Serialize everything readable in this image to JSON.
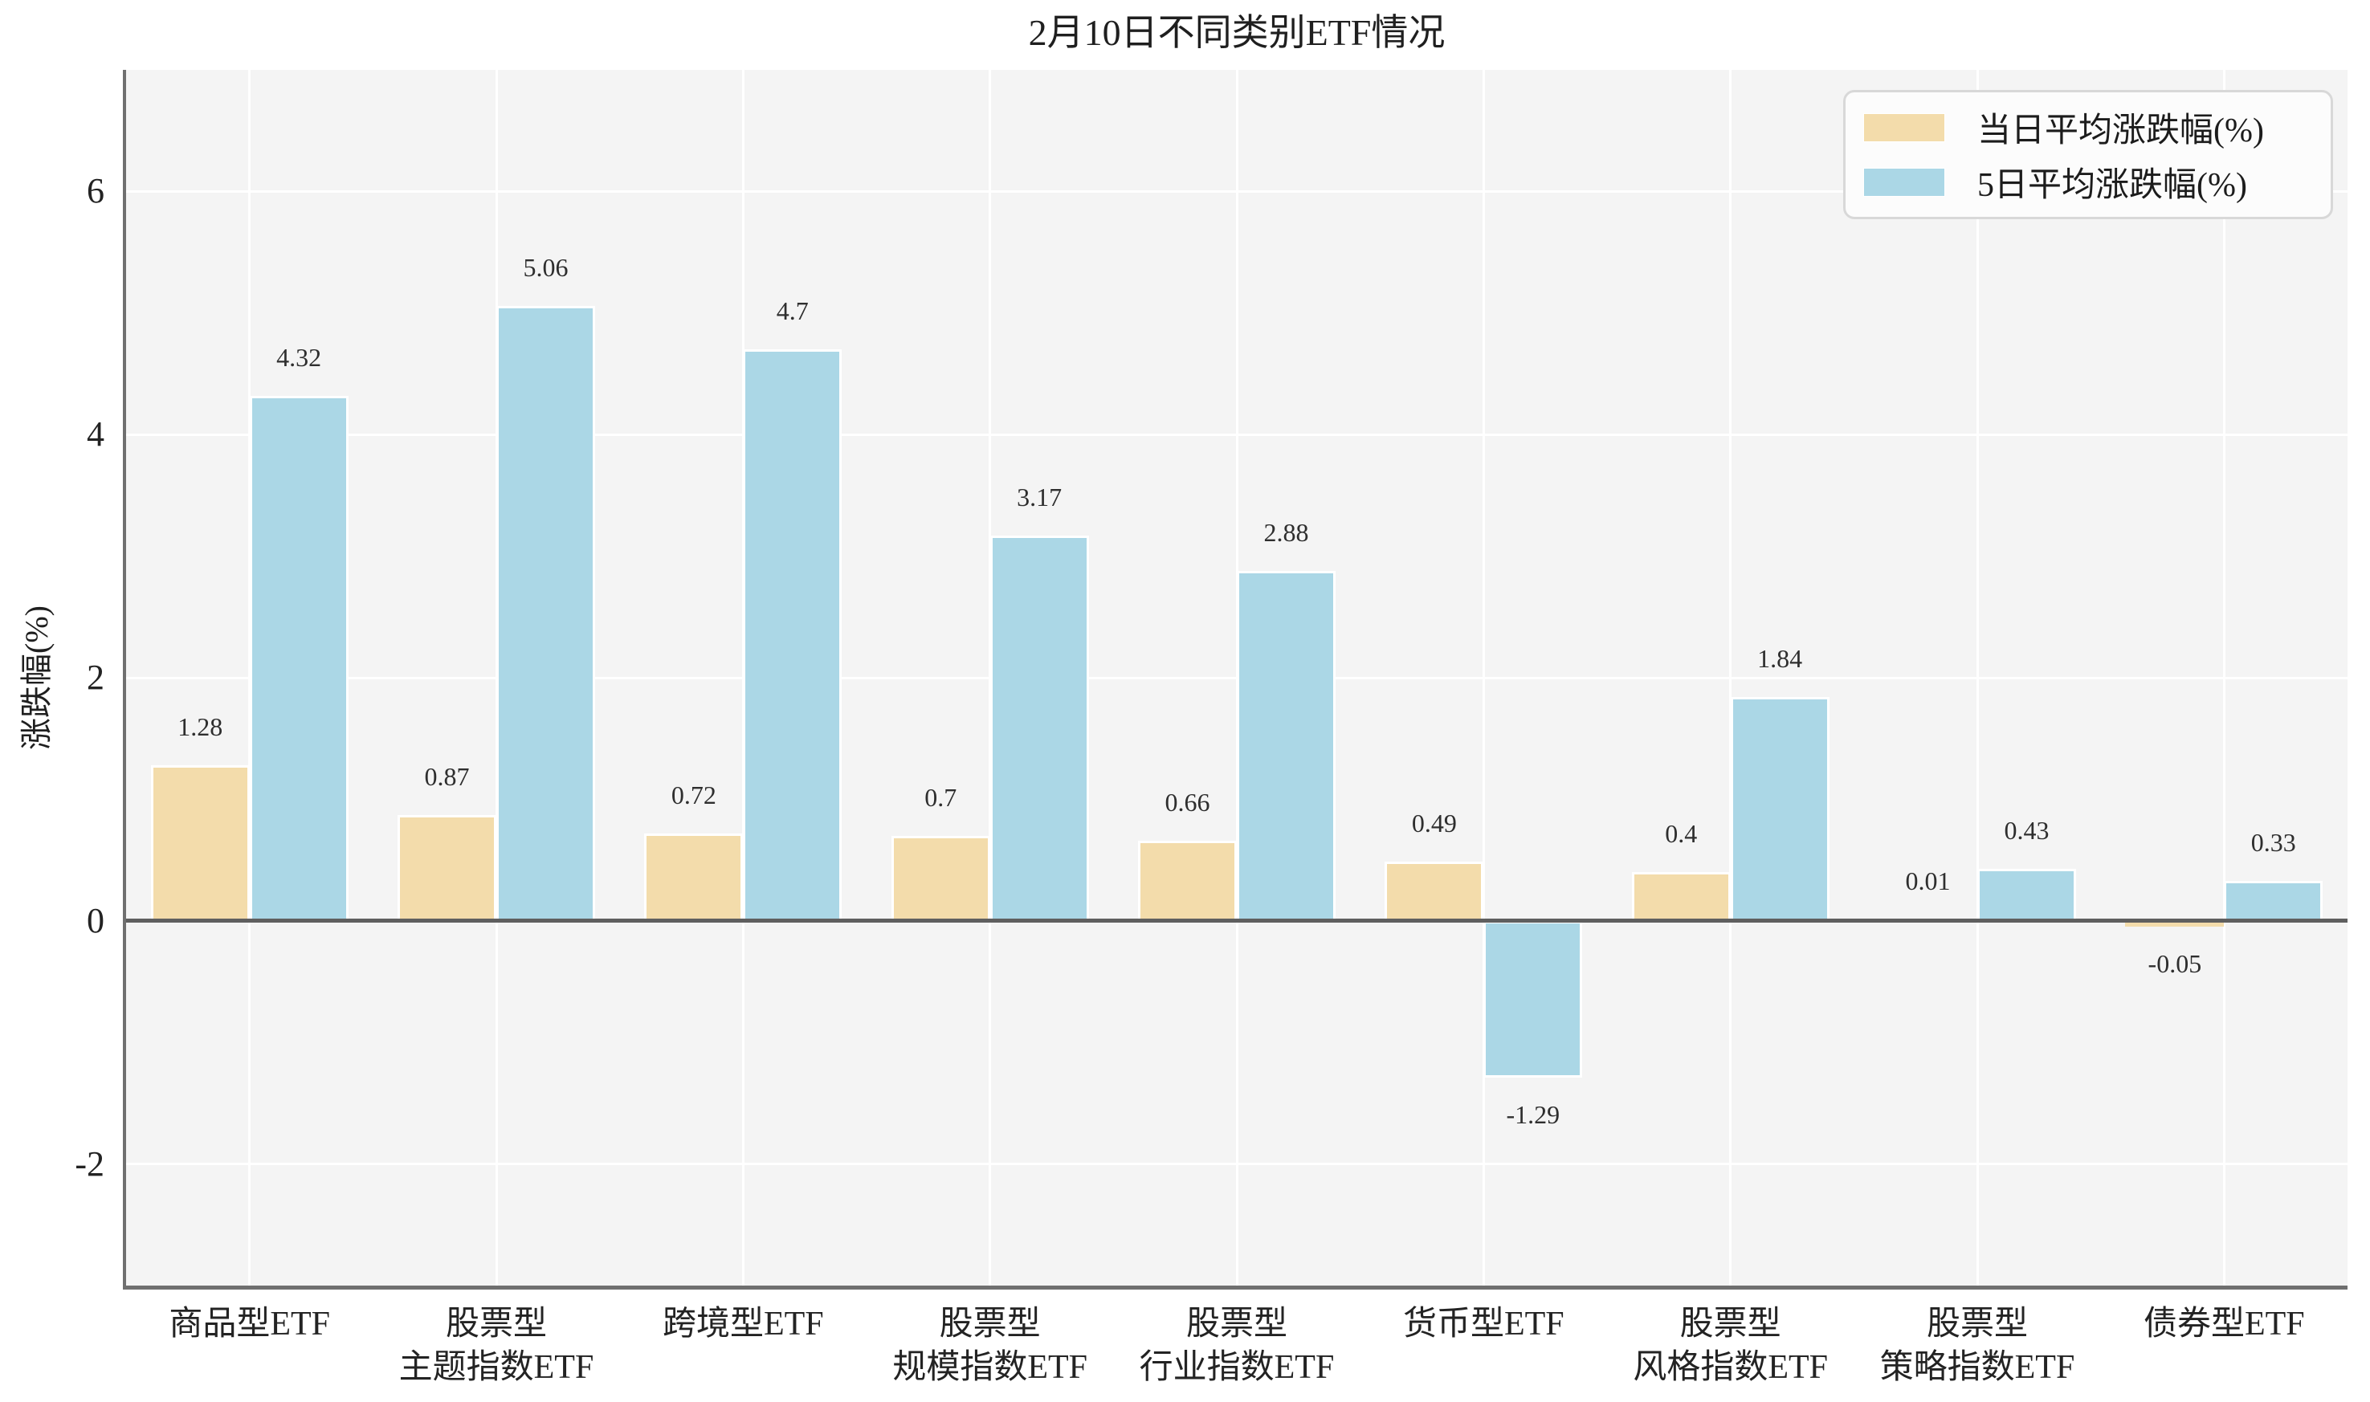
{
  "title": "2月10日不同类别ETF情况",
  "chart_data": {
    "type": "bar",
    "title": "2月10日不同类别ETF情况",
    "xlabel": "",
    "ylabel": "涨跌幅(%)",
    "categories": [
      "商品型ETF",
      "股票型\n主题指数ETF",
      "跨境型ETF",
      "股票型\n规模指数ETF",
      "股票型\n行业指数ETF",
      "货币型ETF",
      "股票型\n风格指数ETF",
      "股票型\n策略指数ETF",
      "债券型ETF"
    ],
    "series": [
      {
        "name": "当日平均涨跌幅(%)",
        "color": "#F3DCAB",
        "values": [
          1.28,
          0.87,
          0.72,
          0.7,
          0.66,
          0.49,
          0.4,
          0.01,
          -0.05
        ],
        "value_labels": [
          "1.28",
          "0.87",
          "0.72",
          "0.7",
          "0.66",
          "0.49",
          "0.4",
          "0.01",
          "-0.05"
        ]
      },
      {
        "name": "5日平均涨跌幅(%)",
        "color": "#ABD7E6",
        "values": [
          4.32,
          5.06,
          4.7,
          3.17,
          2.88,
          -1.29,
          1.84,
          0.43,
          0.33
        ],
        "value_labels": [
          "4.32",
          "5.06",
          "4.7",
          "3.17",
          "2.88",
          "-1.29",
          "1.84",
          "0.43",
          "0.33"
        ]
      }
    ],
    "yticks": [
      -2,
      0,
      2,
      4,
      6
    ],
    "ytick_labels": [
      "-2",
      "0",
      "2",
      "4",
      "6"
    ],
    "ylim": [
      -3,
      7
    ],
    "grid": true,
    "legend_position": "upper right"
  },
  "colors": {
    "plot_background": "#F4F4F4",
    "gridline": "#FFFFFF",
    "spine": "#6F6F6F",
    "zero_line": "#5F5F5F",
    "bar_edge": "#FFFFFF",
    "text": "#232323",
    "legend_background": "#FCFCFC",
    "legend_border": "#D8D8D8"
  }
}
